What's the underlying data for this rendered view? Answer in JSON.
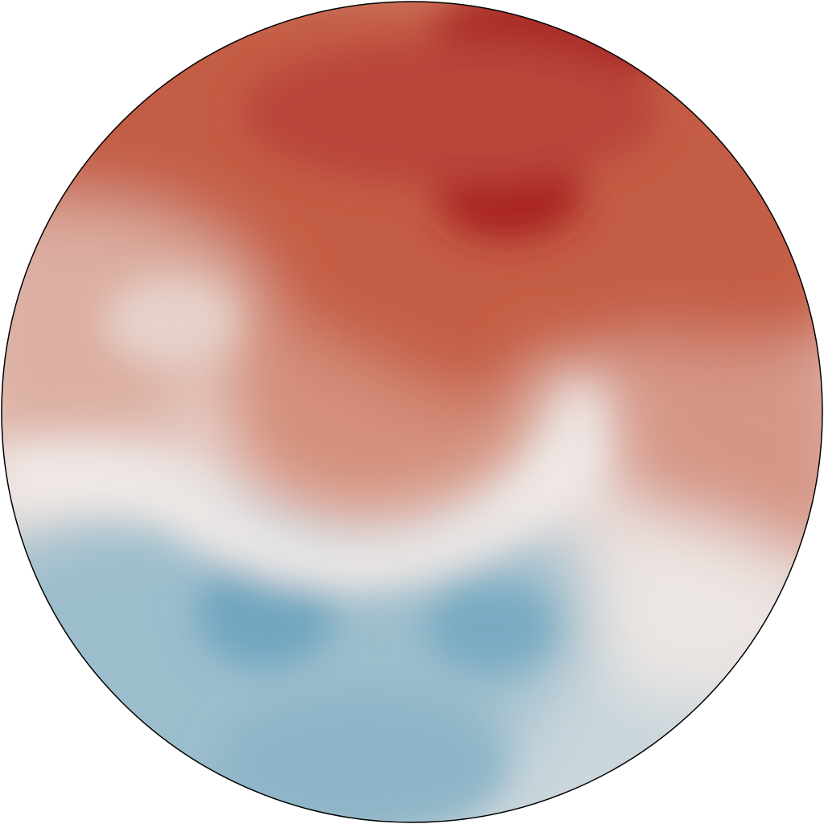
{
  "chart_data": {
    "type": "heatmap",
    "shape": "circular-disk",
    "title": "",
    "colormap": "diverging-red-blue",
    "colors": {
      "high": "#a82424",
      "mid": "#efe9e7",
      "low": "#6fa6c0",
      "outline": "#000000"
    },
    "features": [
      {
        "kind": "maximum",
        "value": 1.0,
        "region": "upper-center-right"
      },
      {
        "kind": "high",
        "value": 0.85,
        "region": "top-edge-right"
      },
      {
        "kind": "moderate-high",
        "value": 0.45,
        "region": "center"
      },
      {
        "kind": "neutral-band",
        "value": 0.0,
        "region": "middle-curved"
      },
      {
        "kind": "minimum",
        "value": -0.75,
        "region": "lower-left"
      },
      {
        "kind": "minimum",
        "value": -0.7,
        "region": "lower-center-right"
      },
      {
        "kind": "neutral-patch",
        "value": 0.05,
        "region": "lower-right-edge"
      }
    ]
  }
}
